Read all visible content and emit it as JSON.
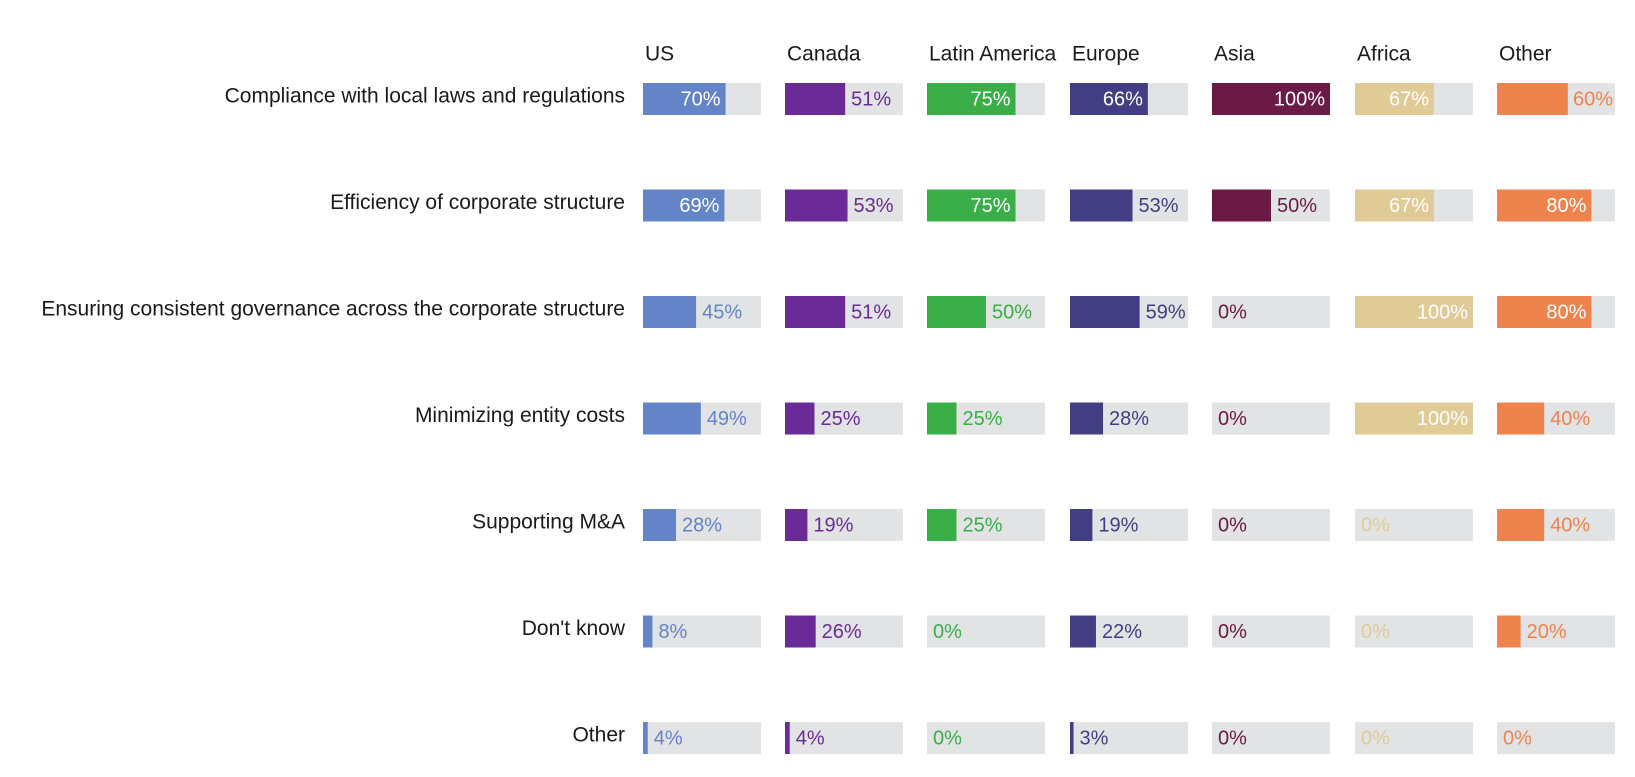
{
  "chart_data": {
    "type": "bar",
    "orientation": "horizontal",
    "layout": "small-multiples",
    "xlim": [
      0,
      100
    ],
    "grid": false,
    "categories": [
      "Compliance with local laws and regulations",
      "Efficiency of corporate structure",
      "Ensuring consistent governance across the corporate structure",
      "Minimizing entity costs",
      "Supporting M&A",
      "Don't know",
      "Other"
    ],
    "series": [
      {
        "name": "US",
        "color": "#6384c6",
        "values": [
          70,
          69,
          45,
          49,
          28,
          8,
          4
        ],
        "labels": [
          "70%",
          "69%",
          "45%",
          "49%",
          "28%",
          "8%",
          "4%"
        ]
      },
      {
        "name": "Canada",
        "color": "#6a2b96",
        "values": [
          51,
          53,
          51,
          25,
          19,
          26,
          4
        ],
        "labels": [
          "51%",
          "53%",
          "51%",
          "25%",
          "19%",
          "26%",
          "4%"
        ]
      },
      {
        "name": "Latin America",
        "color": "#3aae48",
        "values": [
          75,
          75,
          50,
          25,
          25,
          0,
          0
        ],
        "labels": [
          "75%",
          "75%",
          "50%",
          "25%",
          "25%",
          "0%",
          "0%"
        ]
      },
      {
        "name": "Europe",
        "color": "#433e84",
        "values": [
          66,
          53,
          59,
          28,
          19,
          22,
          3
        ],
        "labels": [
          "66%",
          "53%",
          "59%",
          "28%",
          "19%",
          "22%",
          "3%"
        ]
      },
      {
        "name": "Asia",
        "color": "#6a1a45",
        "values": [
          100,
          50,
          0,
          0,
          0,
          0,
          0
        ],
        "labels": [
          "100%",
          "50%",
          "0%",
          "0%",
          "0%",
          "0%",
          "0%"
        ]
      },
      {
        "name": "Africa",
        "color": "#e0cb96",
        "values": [
          67,
          67,
          100,
          100,
          0,
          0,
          0
        ],
        "labels": [
          "67%",
          "67%",
          "100%",
          "100%",
          "0%",
          "0%",
          "0%"
        ]
      },
      {
        "name": "Other",
        "color": "#ee834d",
        "values": [
          60,
          80,
          80,
          40,
          40,
          20,
          0
        ],
        "labels": [
          "60%",
          "80%",
          "80%",
          "40%",
          "40%",
          "20%",
          "0%"
        ]
      }
    ],
    "track_color": "#e2e3e5"
  }
}
